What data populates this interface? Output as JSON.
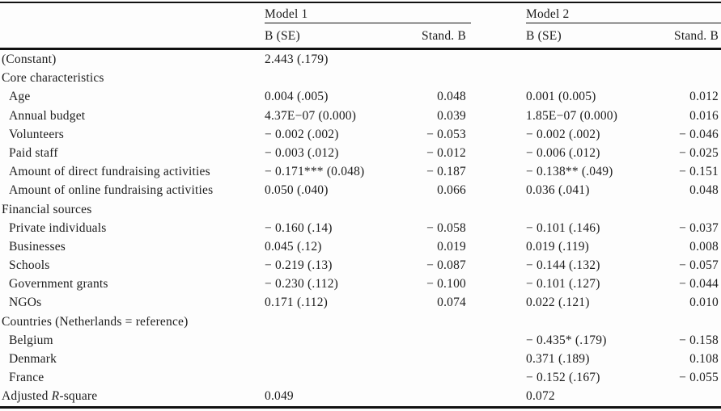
{
  "table": {
    "header": {
      "model1": "Model 1",
      "model2": "Model 2",
      "b_se": "B (SE)",
      "stand_b": "Stand. B"
    },
    "rows": [
      {
        "label": "(Constant)",
        "indent": false,
        "m1_b": "2.443 (.179)",
        "m1_std": "",
        "m2_b": "",
        "m2_std": ""
      },
      {
        "label": "Core characteristics",
        "indent": false,
        "m1_b": "",
        "m1_std": "",
        "m2_b": "",
        "m2_std": ""
      },
      {
        "label": "Age",
        "indent": true,
        "m1_b": "0.004 (.005)",
        "m1_std": "0.048",
        "m2_b": "0.001 (0.005)",
        "m2_std": "0.012"
      },
      {
        "label": "Annual budget",
        "indent": true,
        "m1_b": "4.37E−07 (0.000)",
        "m1_std": "0.039",
        "m2_b": "1.85E−07 (0.000)",
        "m2_std": "0.016"
      },
      {
        "label": "Volunteers",
        "indent": true,
        "m1_b": "− 0.002 (.002)",
        "m1_std": "− 0.053",
        "m2_b": "− 0.002 (.002)",
        "m2_std": "− 0.046"
      },
      {
        "label": "Paid staff",
        "indent": true,
        "m1_b": "− 0.003 (.012)",
        "m1_std": "− 0.012",
        "m2_b": "− 0.006 (.012)",
        "m2_std": "− 0.025"
      },
      {
        "label": "Amount of direct fundraising activities",
        "indent": true,
        "m1_b": "− 0.171*** (0.048)",
        "m1_std": "− 0.187",
        "m2_b": "− 0.138** (.049)",
        "m2_std": "− 0.151"
      },
      {
        "label": "Amount of online fundraising activities",
        "indent": true,
        "m1_b": "0.050 (.040)",
        "m1_std": "0.066",
        "m2_b": "0.036 (.041)",
        "m2_std": "0.048"
      },
      {
        "label": "Financial sources",
        "indent": false,
        "m1_b": "",
        "m1_std": "",
        "m2_b": "",
        "m2_std": ""
      },
      {
        "label": "Private individuals",
        "indent": true,
        "m1_b": "− 0.160 (.14)",
        "m1_std": "− 0.058",
        "m2_b": "− 0.101 (.146)",
        "m2_std": "− 0.037"
      },
      {
        "label": "Businesses",
        "indent": true,
        "m1_b": "0.045 (.12)",
        "m1_std": "0.019",
        "m2_b": "0.019 (.119)",
        "m2_std": "0.008"
      },
      {
        "label": "Schools",
        "indent": true,
        "m1_b": "− 0.219 (.13)",
        "m1_std": "− 0.087",
        "m2_b": "− 0.144 (.132)",
        "m2_std": "− 0.057"
      },
      {
        "label": "Government grants",
        "indent": true,
        "m1_b": "− 0.230 (.112)",
        "m1_std": "− 0.100",
        "m2_b": "− 0.101 (.127)",
        "m2_std": "− 0.044"
      },
      {
        "label": "NGOs",
        "indent": true,
        "m1_b": "0.171 (.112)",
        "m1_std": "0.074",
        "m2_b": "0.022 (.121)",
        "m2_std": "0.010"
      },
      {
        "label": "Countries (Netherlands = reference)",
        "indent": false,
        "m1_b": "",
        "m1_std": "",
        "m2_b": "",
        "m2_std": ""
      },
      {
        "label": "Belgium",
        "indent": true,
        "m1_b": "",
        "m1_std": "",
        "m2_b": "− 0.435* (.179)",
        "m2_std": "− 0.158"
      },
      {
        "label": "Denmark",
        "indent": true,
        "m1_b": "",
        "m1_std": "",
        "m2_b": "0.371 (.189)",
        "m2_std": "0.108"
      },
      {
        "label": "France",
        "indent": true,
        "m1_b": "",
        "m1_std": "",
        "m2_b": "− 0.152 (.167)",
        "m2_std": "− 0.055"
      },
      {
        "label_parts": {
          "pre": "Adjusted ",
          "italic": "R",
          "post": "-square"
        },
        "indent": false,
        "m1_b": "0.049",
        "m1_std": "",
        "m2_b": "0.072",
        "m2_std": ""
      }
    ]
  }
}
